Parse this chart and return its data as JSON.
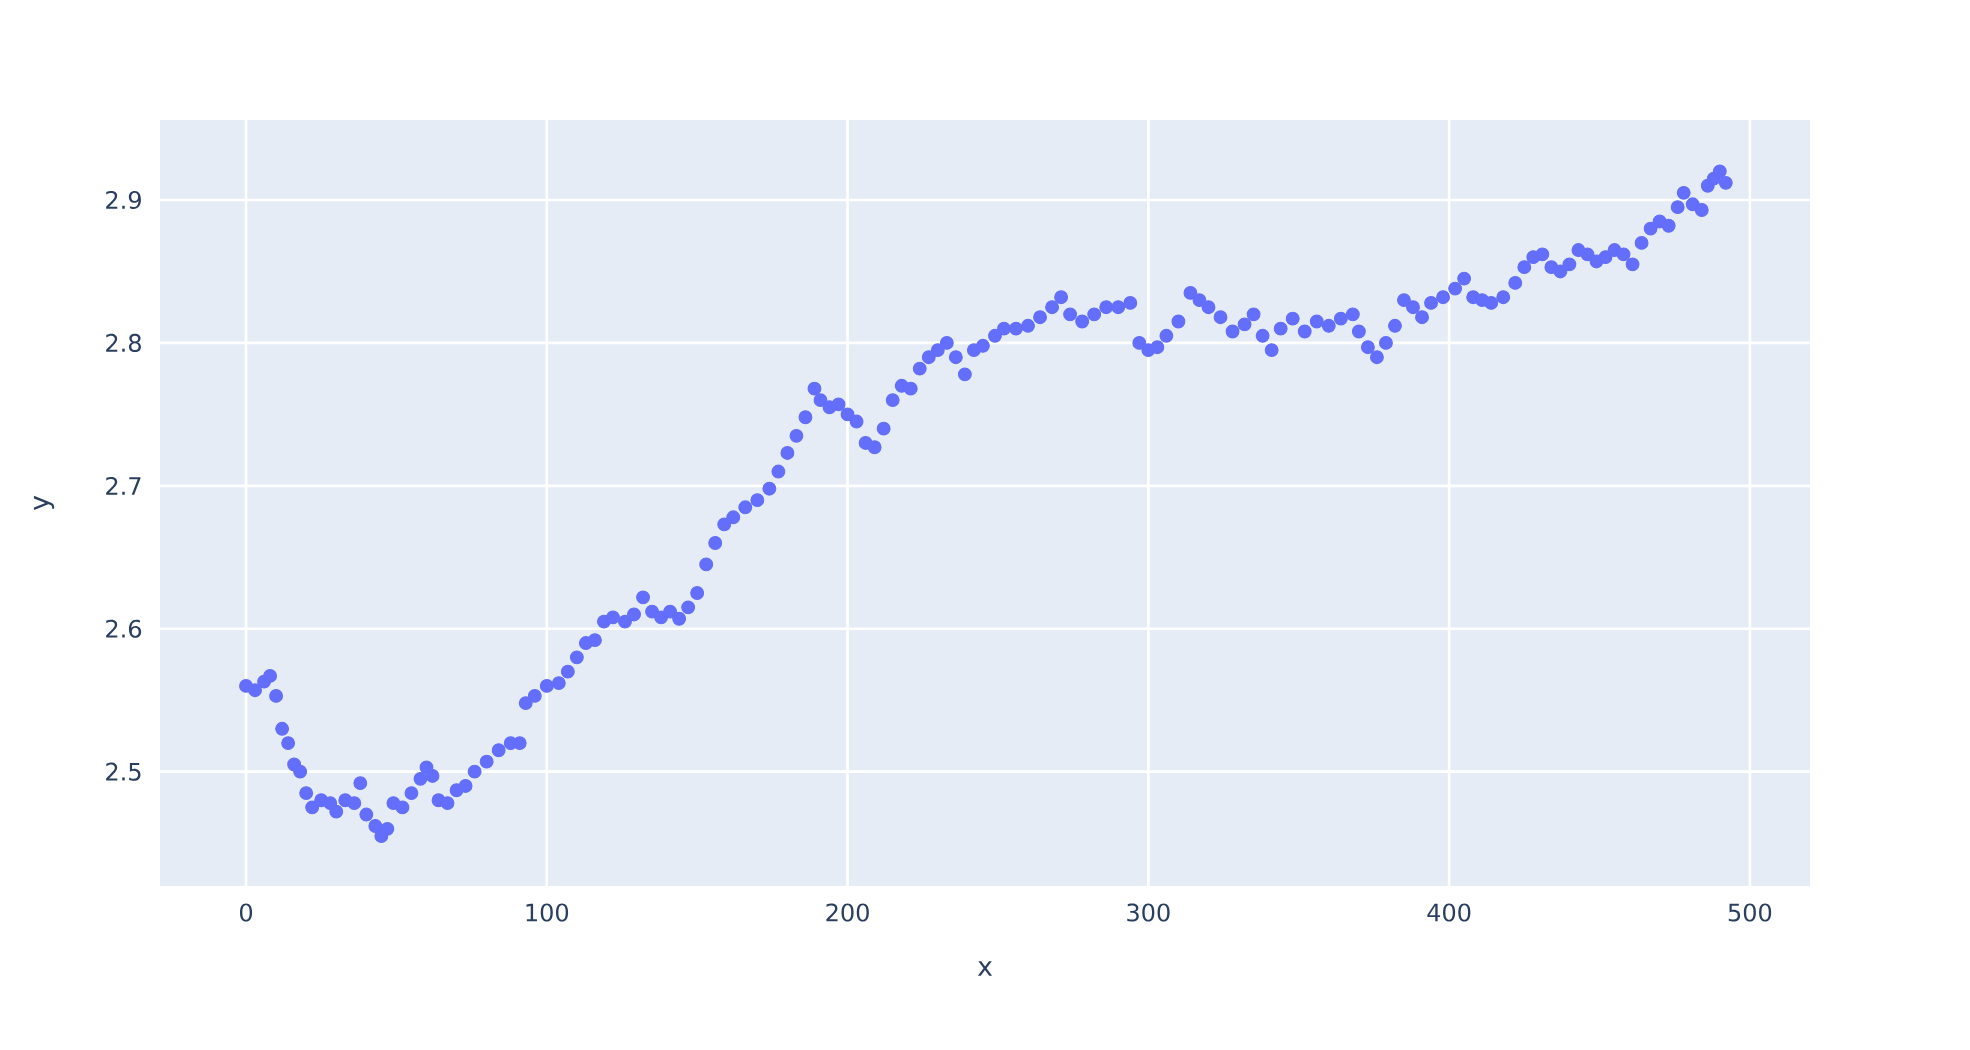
{
  "chart_data": {
    "type": "scatter",
    "xlabel": "x",
    "ylabel": "y",
    "color": "#636efa",
    "marker": "circle",
    "grid": true,
    "xlim": [
      -28.6,
      520
    ],
    "ylim": [
      2.42,
      2.956
    ],
    "xticks": [
      0,
      100,
      200,
      300,
      400,
      500
    ],
    "yticks": [
      2.5,
      2.6,
      2.7,
      2.8,
      2.9
    ],
    "x": [
      0,
      3,
      6,
      8,
      10,
      12,
      14,
      16,
      18,
      20,
      22,
      25,
      28,
      30,
      33,
      36,
      38,
      40,
      43,
      45,
      47,
      49,
      52,
      55,
      58,
      60,
      62,
      64,
      67,
      70,
      73,
      76,
      80,
      84,
      88,
      91,
      93,
      96,
      100,
      104,
      107,
      110,
      113,
      116,
      119,
      122,
      126,
      129,
      132,
      135,
      138,
      141,
      144,
      147,
      150,
      153,
      156,
      159,
      162,
      166,
      170,
      174,
      177,
      180,
      183,
      186,
      189,
      191,
      194,
      197,
      200,
      203,
      206,
      209,
      212,
      215,
      218,
      221,
      224,
      227,
      230,
      233,
      236,
      239,
      242,
      245,
      249,
      252,
      256,
      260,
      264,
      268,
      271,
      274,
      278,
      282,
      286,
      290,
      294,
      297,
      300,
      303,
      306,
      310,
      314,
      317,
      320,
      324,
      328,
      332,
      335,
      338,
      341,
      344,
      348,
      352,
      356,
      360,
      364,
      368,
      370,
      373,
      376,
      379,
      382,
      385,
      388,
      391,
      394,
      398,
      402,
      405,
      408,
      411,
      414,
      418,
      422,
      425,
      428,
      431,
      434,
      437,
      440,
      443,
      446,
      449,
      452,
      455,
      458,
      461,
      464,
      467,
      470,
      473,
      476,
      478,
      481,
      484,
      486,
      488,
      490,
      492
    ],
    "values": [
      2.56,
      2.557,
      2.563,
      2.567,
      2.553,
      2.53,
      2.52,
      2.505,
      2.5,
      2.485,
      2.475,
      2.48,
      2.478,
      2.472,
      2.48,
      2.478,
      2.492,
      2.47,
      2.462,
      2.455,
      2.46,
      2.478,
      2.475,
      2.485,
      2.495,
      2.503,
      2.497,
      2.48,
      2.478,
      2.487,
      2.49,
      2.5,
      2.507,
      2.515,
      2.52,
      2.52,
      2.548,
      2.553,
      2.56,
      2.562,
      2.57,
      2.58,
      2.59,
      2.592,
      2.605,
      2.608,
      2.605,
      2.61,
      2.622,
      2.612,
      2.608,
      2.612,
      2.607,
      2.615,
      2.625,
      2.645,
      2.66,
      2.673,
      2.678,
      2.685,
      2.69,
      2.698,
      2.71,
      2.723,
      2.735,
      2.748,
      2.768,
      2.76,
      2.755,
      2.757,
      2.75,
      2.745,
      2.73,
      2.727,
      2.74,
      2.76,
      2.77,
      2.768,
      2.782,
      2.79,
      2.795,
      2.8,
      2.79,
      2.778,
      2.795,
      2.798,
      2.805,
      2.81,
      2.81,
      2.812,
      2.818,
      2.825,
      2.832,
      2.82,
      2.815,
      2.82,
      2.825,
      2.825,
      2.828,
      2.8,
      2.795,
      2.797,
      2.805,
      2.815,
      2.835,
      2.83,
      2.825,
      2.818,
      2.808,
      2.813,
      2.82,
      2.805,
      2.795,
      2.81,
      2.817,
      2.808,
      2.815,
      2.812,
      2.817,
      2.82,
      2.808,
      2.797,
      2.79,
      2.8,
      2.812,
      2.83,
      2.825,
      2.818,
      2.828,
      2.832,
      2.838,
      2.845,
      2.832,
      2.83,
      2.828,
      2.832,
      2.842,
      2.853,
      2.86,
      2.862,
      2.853,
      2.85,
      2.855,
      2.865,
      2.862,
      2.857,
      2.86,
      2.865,
      2.862,
      2.855,
      2.87,
      2.88,
      2.885,
      2.882,
      2.895,
      2.905,
      2.897,
      2.893,
      2.91,
      2.915,
      2.92,
      2.912
    ]
  }
}
